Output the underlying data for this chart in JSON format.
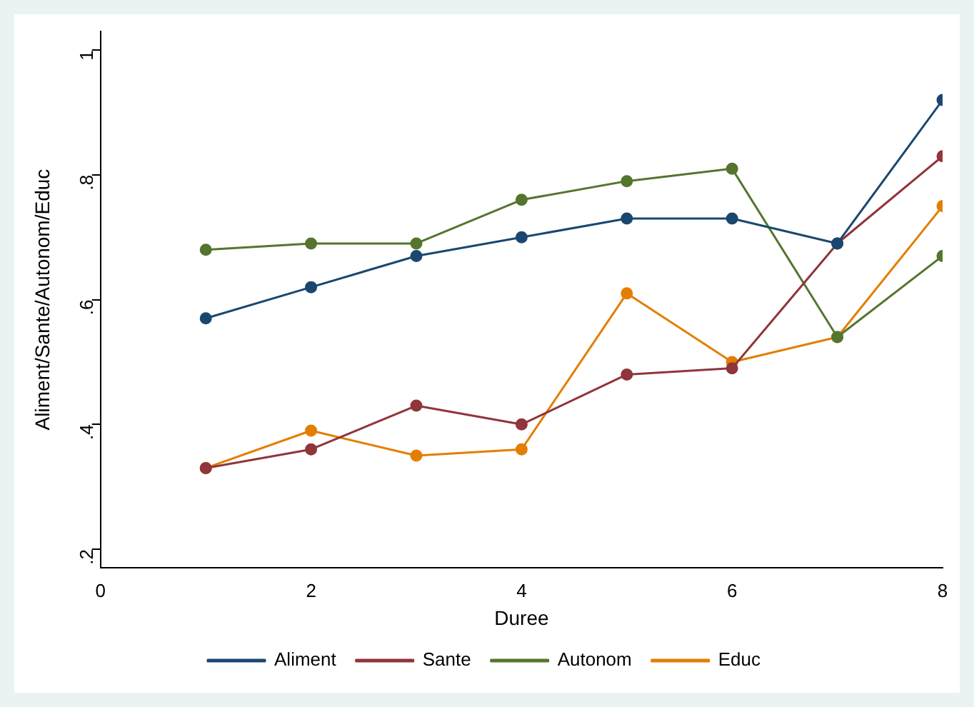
{
  "chart_data": {
    "type": "line",
    "xlabel": "Duree",
    "ylabel": "Aliment/Sante/Autonom/Educ",
    "x": [
      1,
      2,
      3,
      4,
      5,
      6,
      7,
      8
    ],
    "series": [
      {
        "name": "Aliment",
        "color": "#1a476f",
        "values": [
          0.57,
          0.62,
          0.67,
          0.7,
          0.73,
          0.73,
          0.69,
          0.92
        ]
      },
      {
        "name": "Sante",
        "color": "#90353b",
        "values": [
          0.33,
          0.36,
          0.43,
          0.4,
          0.48,
          0.49,
          0.69,
          0.83
        ]
      },
      {
        "name": "Autonom",
        "color": "#55752f",
        "values": [
          0.68,
          0.69,
          0.69,
          0.76,
          0.79,
          0.81,
          0.54,
          0.67
        ]
      },
      {
        "name": "Educ",
        "color": "#e37e00",
        "values": [
          0.33,
          0.39,
          0.35,
          0.36,
          0.61,
          0.5,
          0.54,
          0.75
        ]
      }
    ],
    "xlim": [
      0,
      8
    ],
    "xticks": [
      0,
      2,
      4,
      6,
      8
    ],
    "ylim": [
      0.17,
      1.03
    ],
    "yticks": [
      {
        "value": 0.2,
        "label": ".2"
      },
      {
        "value": 0.4,
        "label": ".4"
      },
      {
        "value": 0.6,
        "label": ".6"
      },
      {
        "value": 0.8,
        "label": ".8"
      },
      {
        "value": 1,
        "label": "1"
      }
    ],
    "grid": false,
    "legend": "bottom",
    "marker": "circle",
    "line_style": "solid"
  }
}
